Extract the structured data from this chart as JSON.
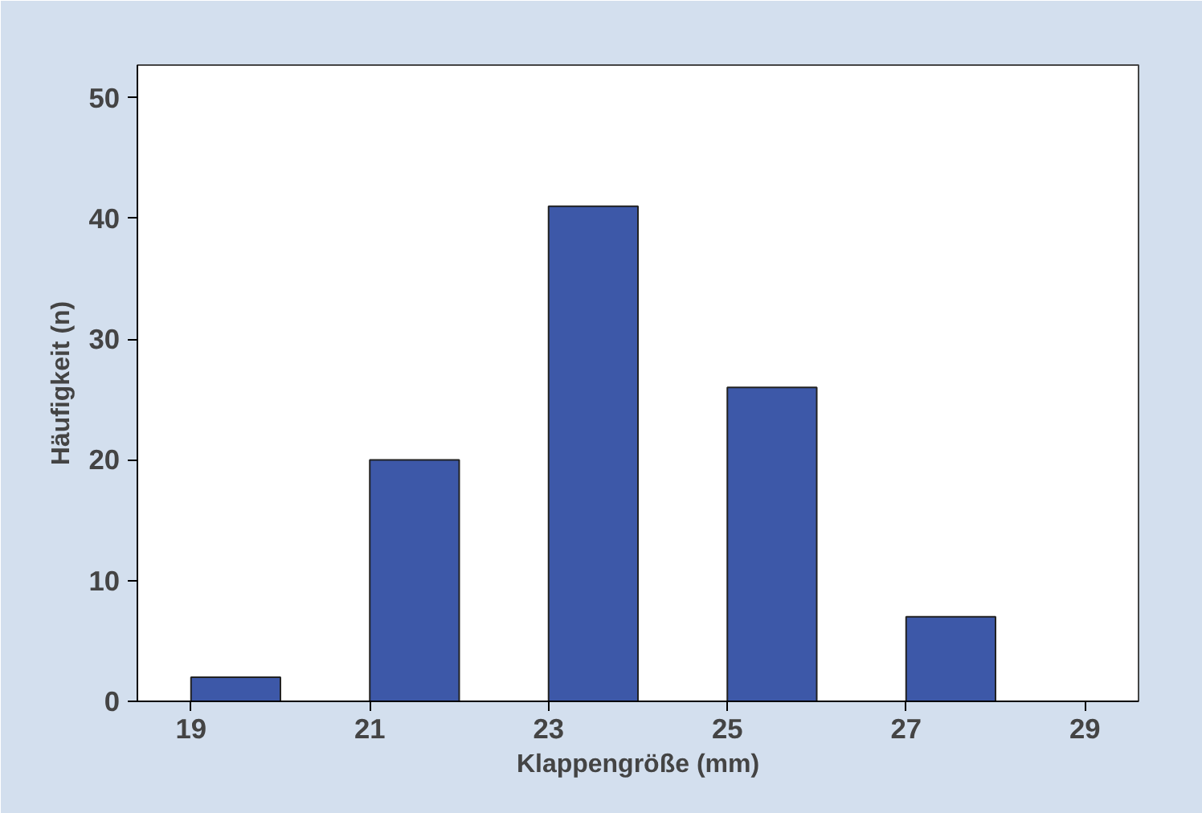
{
  "chart_data": {
    "type": "bar",
    "xlabel": "Klappengröße (mm)",
    "ylabel": "Häufigkeit (n)",
    "x": [
      19.5,
      21.5,
      23.5,
      25.5,
      27.5
    ],
    "values": [
      2,
      20,
      41,
      26,
      7
    ],
    "color": "#3d58a8",
    "xlim": [
      18.4,
      29.6
    ],
    "xticks": [
      19,
      21,
      23,
      25,
      27,
      29
    ],
    "ylim": [
      0,
      52.7
    ],
    "yticks": [
      0,
      10,
      20,
      30,
      40,
      50
    ],
    "grid": false
  }
}
